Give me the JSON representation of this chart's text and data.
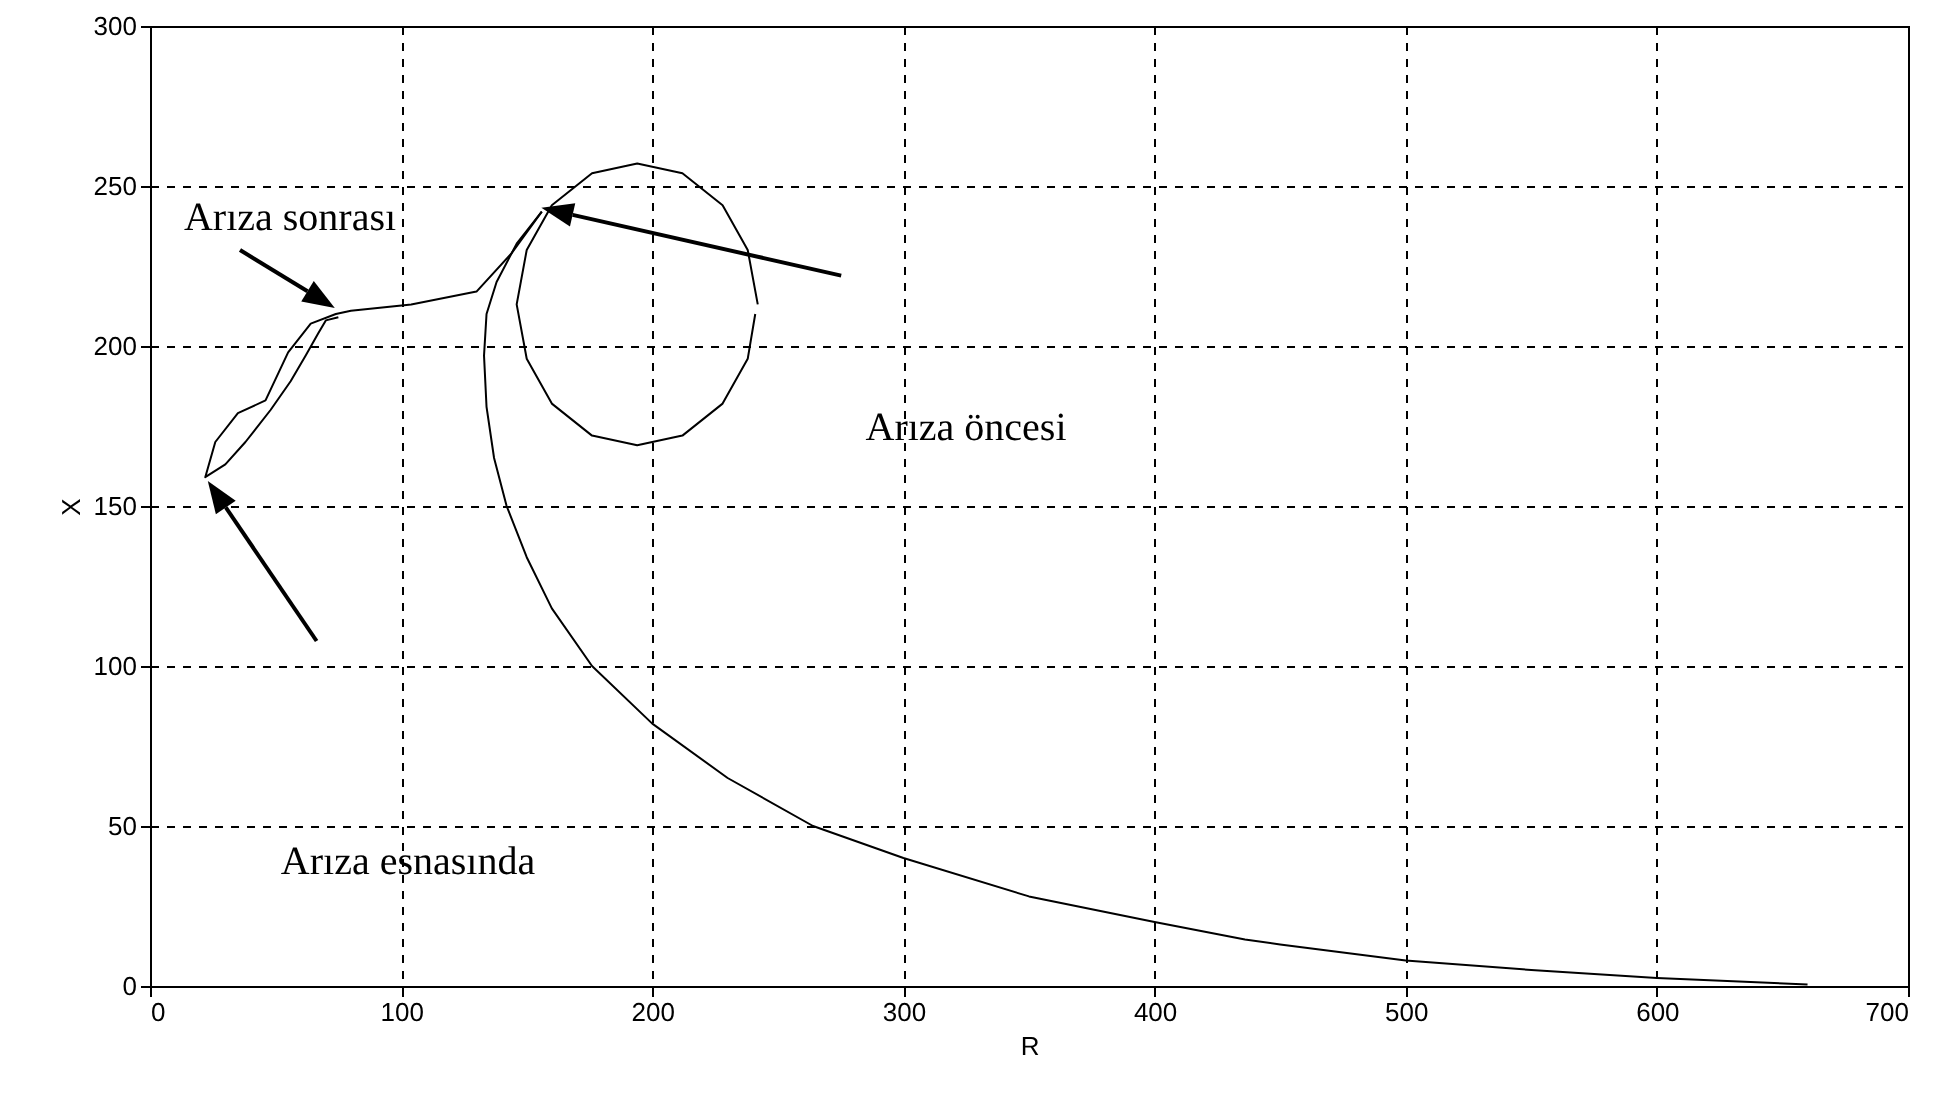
{
  "chart_data": {
    "type": "line",
    "xlabel": "R",
    "ylabel": "X",
    "xlim": [
      0,
      700
    ],
    "xticks": [
      0,
      100,
      200,
      300,
      400,
      500,
      600,
      700
    ],
    "ylim": [
      0,
      300
    ],
    "yticks": [
      0,
      50,
      100,
      150,
      200,
      250,
      300
    ],
    "grid": true,
    "line_style": "solid",
    "marker": "none",
    "series": [
      {
        "color": "#000000",
        "x": [
          660,
          600,
          550,
          500,
          450,
          436,
          400,
          350,
          300,
          264,
          230,
          200,
          176,
          160,
          150,
          142,
          137,
          134,
          133,
          134,
          138,
          146,
          156
        ],
        "values": [
          0.5,
          2.5,
          5,
          8,
          13,
          14.5,
          20,
          28,
          40,
          50,
          65,
          82,
          100,
          118,
          134,
          150,
          165,
          181,
          197,
          210,
          220,
          232,
          242
        ]
      },
      {
        "color": "#000000",
        "x": [
          156,
          144,
          130,
          104,
          80,
          74,
          64,
          55,
          46,
          35,
          26,
          22,
          30,
          38,
          48,
          56,
          62,
          67,
          70,
          75
        ],
        "values": [
          242,
          229,
          217,
          213,
          211,
          210,
          207,
          198,
          183,
          179,
          170,
          159,
          163,
          170,
          180,
          189,
          197,
          204,
          208,
          209
        ]
      },
      {
        "color": "#000000",
        "x": [
          242,
          238,
          228,
          212,
          194,
          176,
          160,
          150,
          146,
          150,
          160,
          176,
          194,
          212,
          228,
          238,
          241
        ],
        "values": [
          213,
          230,
          244,
          254,
          257,
          254,
          244,
          230,
          213,
          196,
          182,
          172,
          169,
          172,
          182,
          196,
          210
        ]
      }
    ],
    "annotations": [
      "Arıza sonrası",
      "Arıza öncesi",
      "Arıza esnasında"
    ]
  }
}
